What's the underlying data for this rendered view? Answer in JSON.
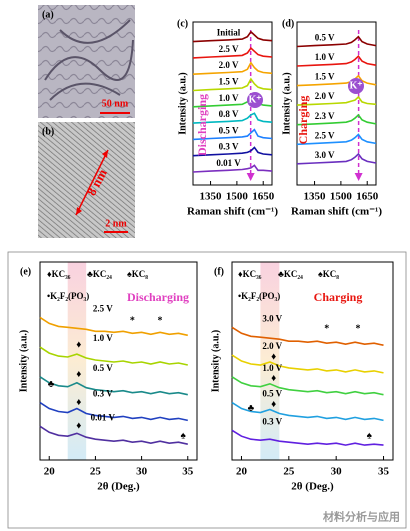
{
  "images": [
    {
      "label": "(a)",
      "scale_bar": "50 nm"
    },
    {
      "label": "(b)",
      "scale_bar": "2 nm",
      "annotation": "8 nm"
    }
  ],
  "chart_data": [
    {
      "type": "line",
      "label": "(c)",
      "xlabel": "Raman shift (cm⁻¹)",
      "ylabel": "Intensity (a.u.)",
      "annotation": "Discharging",
      "annotation_color": "#e040c0",
      "badge": "K⁺",
      "xlim": [
        1250,
        1700
      ],
      "xticks": [
        1350,
        1500,
        1650
      ],
      "ylim": [
        0,
        100
      ],
      "x": [
        1250,
        1350,
        1450,
        1530,
        1560,
        1580,
        1600,
        1620,
        1650,
        1700
      ],
      "series": [
        {
          "name": "Initial",
          "color": "#8b0000",
          "values": [
            88,
            88.5,
            89,
            89.5,
            91,
            94,
            92,
            90,
            89,
            88.5
          ]
        },
        {
          "name": "2.5 V",
          "color": "#e8150f",
          "values": [
            78,
            78.5,
            79,
            79.5,
            81,
            84,
            82,
            80,
            79,
            78.5
          ]
        },
        {
          "name": "2.0 V",
          "color": "#f5a400",
          "values": [
            68,
            68.5,
            69,
            69.5,
            71,
            75,
            72,
            70,
            69,
            68.5
          ]
        },
        {
          "name": "1.5 V",
          "color": "#b8d800",
          "values": [
            58,
            58.5,
            59,
            59.5,
            61,
            65,
            62,
            60,
            59,
            58.5
          ]
        },
        {
          "name": "1.0 V",
          "color": "#33cc33",
          "values": [
            48,
            48.5,
            49,
            49.5,
            51,
            54,
            53,
            50,
            49,
            48.5
          ]
        },
        {
          "name": "0.8 V",
          "color": "#00b8c0",
          "values": [
            38,
            38.5,
            39,
            39.5,
            41,
            43,
            44,
            40,
            39,
            38.5
          ]
        },
        {
          "name": "0.5 V",
          "color": "#1e80ff",
          "values": [
            28,
            28.5,
            29,
            29.5,
            30,
            32,
            34,
            30,
            29,
            28.5
          ]
        },
        {
          "name": "0.3 V",
          "color": "#1010a0",
          "values": [
            18,
            18.5,
            19,
            19.5,
            20,
            21,
            23,
            20,
            19,
            18.5
          ]
        },
        {
          "name": "0.01 V",
          "color": "#7b2fbf",
          "values": [
            8,
            8.5,
            9,
            9.5,
            10,
            10.5,
            12,
            9,
            9,
            8.5
          ]
        }
      ]
    },
    {
      "type": "line",
      "label": "(d)",
      "xlabel": "Raman shift (cm⁻¹)",
      "ylabel": "Intensity (a.u.)",
      "annotation": "Charging",
      "annotation_color": "#e8150f",
      "badge": "K⁺",
      "xlim": [
        1250,
        1700
      ],
      "xticks": [
        1350,
        1500,
        1650
      ],
      "ylim": [
        0,
        100
      ],
      "x": [
        1250,
        1350,
        1450,
        1530,
        1560,
        1580,
        1600,
        1620,
        1650,
        1700
      ],
      "series": [
        {
          "name": "0.5 V",
          "color": "#8b0000",
          "values": [
            85,
            85.5,
            86,
            86.5,
            87.5,
            89,
            91,
            88,
            86.5,
            85.5
          ]
        },
        {
          "name": "1.0 V",
          "color": "#e8150f",
          "values": [
            73,
            73.5,
            74,
            74.5,
            75.5,
            77,
            79,
            76,
            74.5,
            73.5
          ]
        },
        {
          "name": "1.5 V",
          "color": "#f5a400",
          "values": [
            61,
            61.5,
            62,
            62.5,
            63.5,
            65,
            67,
            64,
            62.5,
            61.5
          ]
        },
        {
          "name": "2.0 V",
          "color": "#b8d800",
          "values": [
            49,
            49.5,
            50,
            50.5,
            51.5,
            52,
            54,
            51,
            50,
            49.5
          ]
        },
        {
          "name": "2.3 V",
          "color": "#33cc33",
          "values": [
            37,
            37.5,
            38,
            38.5,
            39.5,
            41,
            43,
            40,
            38.5,
            37.5
          ]
        },
        {
          "name": "2.5 V",
          "color": "#1e90ff",
          "values": [
            25,
            25.5,
            26,
            26.5,
            27.5,
            29,
            31,
            28,
            26.5,
            25.5
          ]
        },
        {
          "name": "3.0 V",
          "color": "#6a2fbf",
          "values": [
            13,
            13.5,
            14,
            14.5,
            15.5,
            17,
            19,
            16,
            14.5,
            13.5
          ]
        }
      ]
    },
    {
      "type": "line",
      "label": "(e)",
      "xlabel": "2θ (Deg.)",
      "ylabel": "Intensity (a.u.)",
      "annotation": "Discharging",
      "annotation_color": "#e040c0",
      "legend_text": [
        "♦KC₃₆",
        "♣KC₂₄",
        "♠KC₈",
        "•K₂F₂(PO₃)"
      ],
      "highlight": [
        22,
        24
      ],
      "xlim": [
        19,
        36
      ],
      "xticks": [
        20,
        25,
        30,
        35
      ],
      "ylim": [
        0,
        100
      ],
      "x": [
        19,
        20,
        21,
        22,
        23,
        24,
        25,
        26,
        27,
        28,
        29,
        30,
        31,
        32,
        33,
        34,
        35
      ],
      "series": [
        {
          "name": "2.5 V",
          "color": "#f0a000",
          "values": [
            72,
            69,
            67.5,
            67,
            66.5,
            66,
            65,
            65,
            64.5,
            65,
            64,
            64.5,
            63.5,
            64.5,
            63.5,
            64,
            63
          ]
        },
        {
          "name": "1.0 V",
          "color": "#a8d400",
          "values": [
            57,
            54,
            52.5,
            52,
            53.5,
            51.5,
            50.5,
            50,
            49.5,
            50,
            49,
            49.5,
            48.5,
            49.5,
            48.5,
            49,
            48
          ]
        },
        {
          "name": "0.5 V",
          "color": "#1a8a8a",
          "values": [
            42,
            39,
            37.5,
            37,
            39,
            36.5,
            35.5,
            35,
            34.5,
            35,
            34,
            34.5,
            33.5,
            34.5,
            33.5,
            34,
            33
          ]
        },
        {
          "name": "0.3 V",
          "color": "#2040c0",
          "values": [
            29,
            26,
            24.5,
            24,
            26,
            23.5,
            22.5,
            22,
            21.5,
            22,
            21,
            21.5,
            20.5,
            21.5,
            20.5,
            21,
            20
          ]
        },
        {
          "name": "0.01 V",
          "color": "#5030a0",
          "values": [
            17,
            14,
            12.5,
            12,
            13.5,
            11.5,
            10.5,
            10,
            9.5,
            10,
            9,
            9.5,
            8.5,
            9.5,
            8.5,
            9,
            8
          ]
        }
      ],
      "markers": [
        {
          "symbol": "*",
          "x": 29,
          "y": 70
        },
        {
          "symbol": "*",
          "x": 32,
          "y": 70
        },
        {
          "symbol": "♦",
          "x": 23.2,
          "y": 58
        },
        {
          "symbol": "♦",
          "x": 23.2,
          "y": 43
        },
        {
          "symbol": "♣",
          "x": 20.2,
          "y": 38
        },
        {
          "symbol": "♦",
          "x": 23.2,
          "y": 29
        },
        {
          "symbol": "♦",
          "x": 23.2,
          "y": 17
        },
        {
          "symbol": "♠",
          "x": 34.5,
          "y": 12
        }
      ]
    },
    {
      "type": "line",
      "label": "(f)",
      "xlabel": "2θ (Deg.)",
      "ylabel": "Intensity (a.u.)",
      "annotation": "Charging",
      "annotation_color": "#e8150f",
      "legend_text": [
        "♦KC₃₆",
        "♣KC₂₄",
        "♠KC₈",
        "•K₂F₂(PO₃)"
      ],
      "highlight": [
        22,
        24
      ],
      "xlim": [
        19,
        36
      ],
      "xticks": [
        20,
        25,
        30,
        35
      ],
      "ylim": [
        0,
        100
      ],
      "x": [
        19,
        20,
        21,
        22,
        23,
        24,
        25,
        26,
        27,
        28,
        29,
        30,
        31,
        32,
        33,
        34,
        35
      ],
      "series": [
        {
          "name": "3.0 V",
          "color": "#e06000",
          "values": [
            67,
            64,
            62.5,
            62,
            61.5,
            61,
            60,
            60,
            59.5,
            60,
            59,
            59.5,
            58.5,
            59.5,
            58.5,
            59,
            58
          ]
        },
        {
          "name": "2.0 V",
          "color": "#e8d000",
          "values": [
            53,
            50,
            48.5,
            48,
            49.5,
            47.5,
            46.5,
            46,
            45.5,
            46,
            45,
            45.5,
            44.5,
            45.5,
            44.5,
            45,
            44
          ]
        },
        {
          "name": "1.0 V",
          "color": "#40d040",
          "values": [
            42,
            39,
            37.5,
            37,
            38.5,
            36.5,
            35.5,
            35,
            34.5,
            35,
            34,
            34.5,
            33.5,
            34.5,
            33.5,
            34,
            33
          ]
        },
        {
          "name": "0.5 V",
          "color": "#20a0e0",
          "values": [
            29,
            26,
            24.5,
            24,
            25.5,
            23.5,
            22.5,
            22,
            21.5,
            22,
            21,
            21.5,
            20.5,
            21.5,
            20.5,
            21,
            20
          ]
        },
        {
          "name": "0.3 V",
          "color": "#6020e0",
          "values": [
            15,
            12,
            10.5,
            10,
            10.5,
            9.5,
            9,
            8.5,
            8,
            8.5,
            8,
            8.5,
            7.5,
            8.5,
            7.5,
            8,
            7.5
          ]
        }
      ],
      "markers": [
        {
          "symbol": "*",
          "x": 29,
          "y": 66
        },
        {
          "symbol": "*",
          "x": 32.3,
          "y": 66
        },
        {
          "symbol": "♦",
          "x": 23.4,
          "y": 52
        },
        {
          "symbol": "♦",
          "x": 23.4,
          "y": 41
        },
        {
          "symbol": "♣",
          "x": 21,
          "y": 26
        },
        {
          "symbol": "♦",
          "x": 23.4,
          "y": 28
        },
        {
          "symbol": "♠",
          "x": 33.5,
          "y": 12
        }
      ]
    }
  ],
  "watermark": "材料分析与应用"
}
